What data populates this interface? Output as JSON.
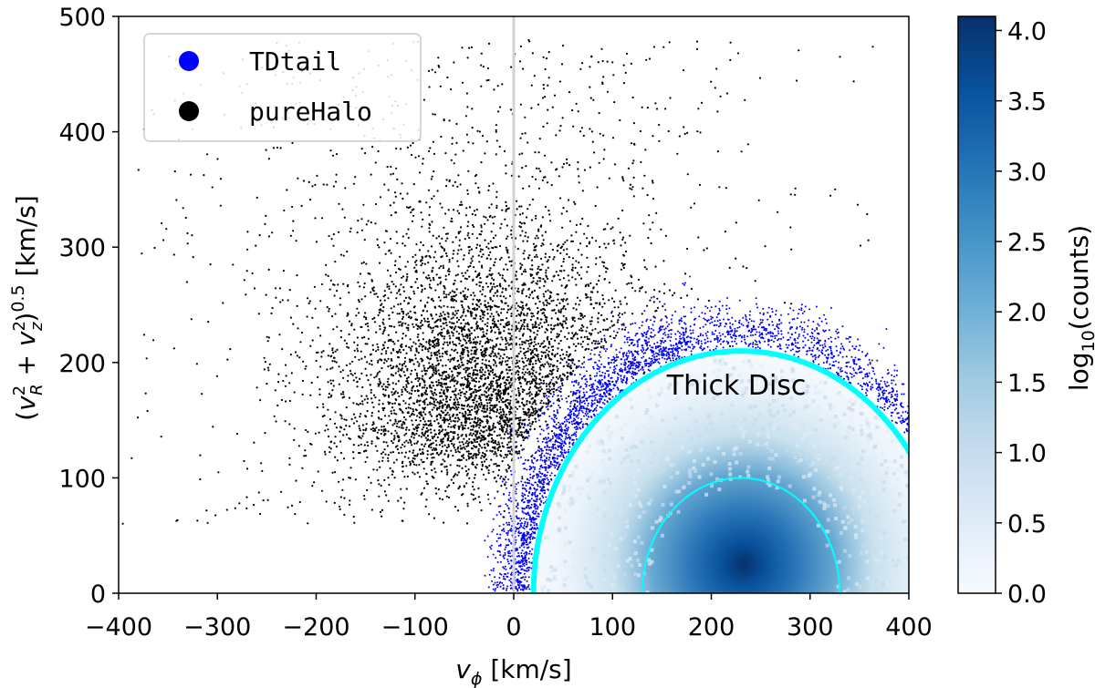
{
  "chart_data": {
    "type": "scatter",
    "xlabel": "v_φ [km/s]",
    "xlabel_parts": {
      "main": "v",
      "sub": "ϕ",
      "unit": " [km/s]"
    },
    "ylabel": "(v_R^2 + v_z^2)^0.5 [km/s]",
    "ylabel_parts": {
      "open": "(",
      "v1": "v",
      "v1_sup": "2",
      "v1_sub": "R",
      "plus": " + ",
      "v2": "v",
      "v2_sup": "2",
      "v2_sub": "z",
      "close": ")",
      "exp": "0.5",
      "unit": " [km/s]"
    },
    "xlim": [
      -400,
      400
    ],
    "ylim": [
      0,
      500
    ],
    "xticks": [
      -400,
      -300,
      -200,
      -100,
      0,
      100,
      200,
      300,
      400
    ],
    "xtick_labels": [
      "−400",
      "−300",
      "−200",
      "−100",
      "0",
      "100",
      "200",
      "300",
      "400"
    ],
    "yticks": [
      0,
      100,
      200,
      300,
      400,
      500
    ],
    "ytick_labels": [
      "0",
      "100",
      "200",
      "300",
      "400",
      "500"
    ],
    "vertical_line_x": 0,
    "legend_position": "top-left",
    "series": [
      {
        "name": "TDtail",
        "color": "#0000ff",
        "marker": "dot",
        "description": "ring just outside the thick-disc boundary, roughly 210 < |v - (230,0)| < 260 km/s, v_φ > -30"
      },
      {
        "name": "pureHalo",
        "color": "#000000",
        "marker": "dot",
        "description": "broad distribution centred near v_φ ≈ -20, extending to 500 km/s"
      }
    ],
    "thick_disc": {
      "label": "Thick Disc",
      "centre": [
        230,
        0
      ],
      "outer_radius": 210,
      "inner_radius": 100,
      "boundary_color": "#00ffff",
      "density_peak": [
        230,
        25
      ]
    },
    "colorbar": {
      "label": "log₁₀(counts)",
      "label_parts": {
        "main": "log",
        "sub": "10",
        "rest": "(counts)"
      },
      "range": [
        0.0,
        4.1
      ],
      "ticks": [
        0.0,
        0.5,
        1.0,
        1.5,
        2.0,
        2.5,
        3.0,
        3.5,
        4.0
      ],
      "tick_labels": [
        "0.0",
        "0.5",
        "1.0",
        "1.5",
        "2.0",
        "2.5",
        "3.0",
        "3.5",
        "4.0"
      ],
      "colormap": "Blues",
      "color_low": "#f7fbff",
      "color_high": "#08306b"
    }
  }
}
